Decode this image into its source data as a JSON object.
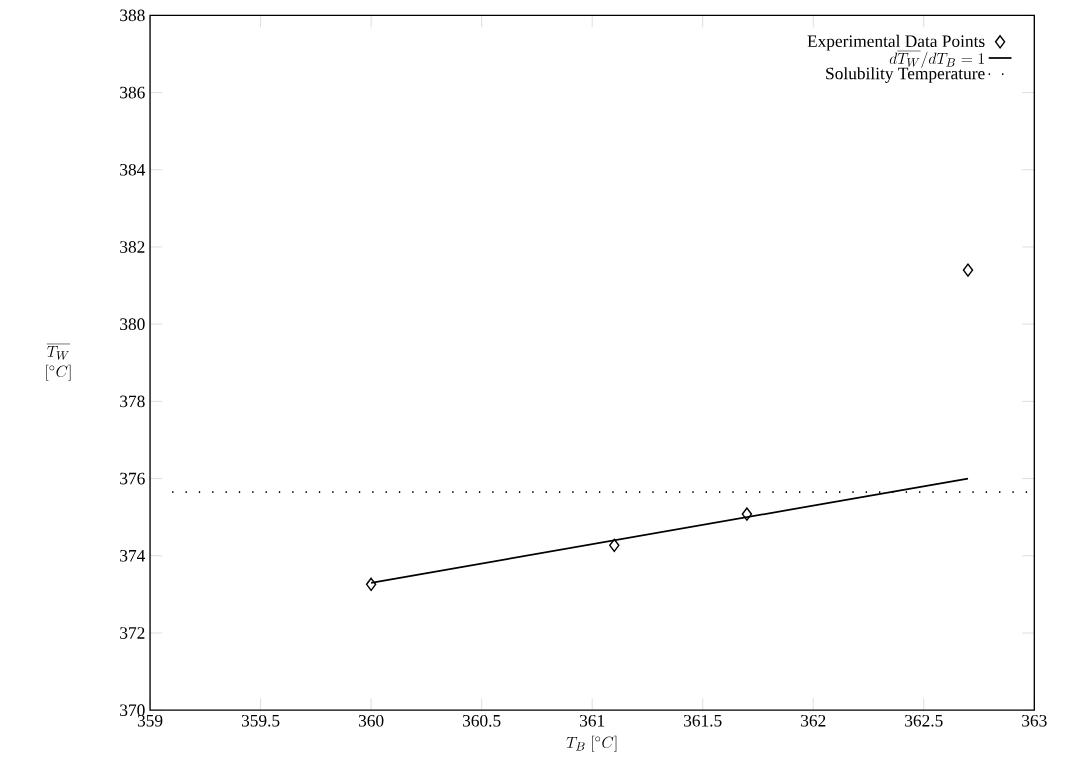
{
  "chart_data": {
    "type": "scatter",
    "xlabel": "T_B\\ [^\\circ C]",
    "ylabel": "\\begin{array}{c}\\overline{T_W}\\\\ {[^\\circ C]}\\end{array}",
    "xlim": [
      359,
      363
    ],
    "ylim": [
      370,
      388
    ],
    "xticks": [
      359,
      359.5,
      360,
      360.5,
      361,
      361.5,
      362,
      362.5,
      363
    ],
    "yticks": [
      370,
      372,
      374,
      376,
      378,
      380,
      382,
      384,
      386,
      388
    ],
    "grid": false,
    "legend": "top right",
    "series": [
      {
        "name": "Experimental Data Points",
        "marker": "diamond",
        "color": "#000000",
        "x": [
          360,
          361.1,
          361.7,
          362.7
        ],
        "values": [
          373.26,
          374.27,
          375.08,
          381.4
        ]
      },
      {
        "name": "d\\overline{T_W}/dT_B = 1",
        "type": "line",
        "marker": "none",
        "line_style": "solid",
        "color": "#000000",
        "x": [
          360,
          362.7
        ],
        "values": [
          373.3,
          376.0
        ]
      },
      {
        "name": "Solubility Temperature",
        "type": "line",
        "marker": "none",
        "line_style": "dotted",
        "color": "#000000",
        "x": [
          359.1,
          363
        ],
        "values": [
          375.65,
          375.65
        ]
      }
    ]
  }
}
